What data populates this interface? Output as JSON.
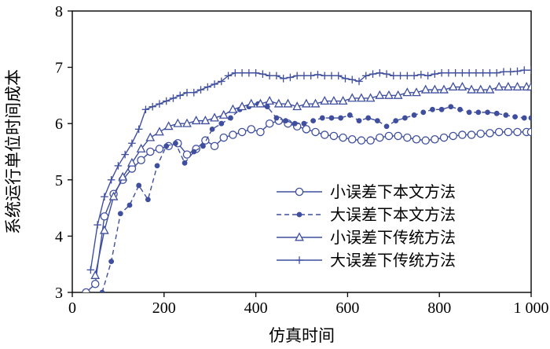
{
  "chart_data": {
    "type": "line",
    "title": "",
    "xlabel": "仿真时间",
    "ylabel": "系统运行单位时间成本",
    "xlim": [
      0,
      1000
    ],
    "ylim": [
      3,
      8
    ],
    "xticks": [
      0,
      200,
      400,
      600,
      800,
      1000
    ],
    "xtick_labels": [
      "0",
      "200",
      "400",
      "600",
      "800",
      "1 000"
    ],
    "yticks": [
      3,
      4,
      5,
      6,
      7,
      8
    ],
    "ytick_labels": [
      "3",
      "4",
      "5",
      "6",
      "7",
      "8"
    ],
    "grid": false,
    "legend_position": "inside-lower-right",
    "line_color": "#3f4f9e",
    "axis_color": "#000000",
    "series": [
      {
        "name": "小误差下本文方法",
        "marker": "circle-open",
        "line": "solid",
        "x": [
          30,
          50,
          70,
          90,
          110,
          130,
          150,
          170,
          190,
          210,
          230,
          250,
          270,
          290,
          310,
          330,
          350,
          370,
          390,
          410,
          430,
          450,
          470,
          490,
          510,
          530,
          550,
          570,
          590,
          610,
          630,
          650,
          670,
          690,
          710,
          730,
          750,
          770,
          790,
          810,
          830,
          850,
          870,
          890,
          910,
          930,
          950,
          970,
          990,
          1000
        ],
        "y": [
          3.0,
          3.15,
          4.35,
          4.75,
          5.0,
          5.2,
          5.35,
          5.5,
          5.55,
          5.6,
          5.65,
          5.45,
          5.55,
          5.7,
          5.6,
          5.75,
          5.8,
          5.85,
          5.9,
          5.85,
          6.0,
          6.05,
          6.0,
          5.95,
          5.9,
          5.85,
          5.8,
          5.78,
          5.75,
          5.72,
          5.7,
          5.7,
          5.75,
          5.78,
          5.78,
          5.75,
          5.72,
          5.7,
          5.72,
          5.75,
          5.78,
          5.8,
          5.8,
          5.82,
          5.83,
          5.85,
          5.85,
          5.85,
          5.85,
          5.85
        ]
      },
      {
        "name": "大误差下本文方法",
        "marker": "circle-filled",
        "line": "dashed",
        "x": [
          65,
          85,
          105,
          125,
          145,
          165,
          185,
          205,
          225,
          245,
          265,
          285,
          305,
          325,
          345,
          365,
          385,
          405,
          425,
          445,
          465,
          485,
          505,
          525,
          545,
          565,
          585,
          605,
          625,
          645,
          665,
          685,
          705,
          725,
          745,
          765,
          785,
          805,
          825,
          845,
          865,
          885,
          905,
          925,
          945,
          965,
          985,
          1000
        ],
        "y": [
          3.0,
          3.55,
          4.4,
          4.55,
          4.9,
          4.65,
          5.25,
          5.6,
          5.65,
          5.3,
          5.5,
          5.6,
          5.9,
          6.0,
          6.1,
          6.25,
          6.3,
          6.35,
          6.3,
          6.1,
          6.05,
          6.0,
          6.0,
          6.05,
          6.1,
          6.1,
          6.1,
          6.15,
          6.05,
          6.1,
          6.05,
          5.95,
          6.05,
          6.1,
          6.15,
          6.2,
          6.25,
          6.25,
          6.3,
          6.25,
          6.2,
          6.2,
          6.2,
          6.18,
          6.15,
          6.12,
          6.1,
          6.1
        ]
      },
      {
        "name": "小误差下传统方法",
        "marker": "triangle-open",
        "line": "solid",
        "x": [
          50,
          70,
          90,
          110,
          130,
          150,
          170,
          190,
          210,
          230,
          250,
          270,
          290,
          310,
          330,
          350,
          370,
          390,
          410,
          430,
          450,
          470,
          490,
          510,
          530,
          550,
          570,
          590,
          610,
          630,
          650,
          670,
          690,
          710,
          730,
          750,
          770,
          790,
          810,
          830,
          850,
          870,
          890,
          910,
          930,
          950,
          970,
          990,
          1000
        ],
        "y": [
          3.3,
          4.1,
          4.7,
          5.05,
          5.3,
          5.55,
          5.75,
          5.85,
          5.95,
          6.0,
          6.0,
          6.05,
          6.05,
          6.1,
          6.15,
          6.25,
          6.3,
          6.35,
          6.35,
          6.4,
          6.35,
          6.35,
          6.3,
          6.35,
          6.35,
          6.4,
          6.4,
          6.4,
          6.45,
          6.45,
          6.45,
          6.5,
          6.5,
          6.5,
          6.55,
          6.55,
          6.6,
          6.6,
          6.6,
          6.65,
          6.65,
          6.6,
          6.6,
          6.6,
          6.65,
          6.65,
          6.65,
          6.65,
          6.65
        ]
      },
      {
        "name": "大误差下传统方法",
        "marker": "plus",
        "line": "solid",
        "x": [
          40,
          55,
          70,
          85,
          100,
          115,
          130,
          145,
          160,
          175,
          190,
          205,
          220,
          235,
          250,
          265,
          280,
          295,
          310,
          325,
          340,
          355,
          370,
          385,
          400,
          415,
          430,
          445,
          460,
          475,
          490,
          505,
          520,
          535,
          550,
          565,
          580,
          595,
          610,
          625,
          640,
          655,
          670,
          685,
          700,
          715,
          730,
          745,
          760,
          775,
          790,
          805,
          820,
          835,
          850,
          865,
          880,
          895,
          910,
          925,
          940,
          955,
          970,
          985,
          1000
        ],
        "y": [
          3.4,
          4.2,
          4.7,
          5.0,
          5.25,
          5.45,
          5.65,
          5.9,
          6.25,
          6.3,
          6.35,
          6.4,
          6.45,
          6.5,
          6.55,
          6.55,
          6.6,
          6.65,
          6.7,
          6.75,
          6.85,
          6.9,
          6.9,
          6.9,
          6.9,
          6.88,
          6.85,
          6.85,
          6.8,
          6.82,
          6.85,
          6.85,
          6.85,
          6.87,
          6.85,
          6.85,
          6.85,
          6.8,
          6.78,
          6.75,
          6.85,
          6.88,
          6.9,
          6.88,
          6.85,
          6.85,
          6.85,
          6.85,
          6.87,
          6.85,
          6.88,
          6.9,
          6.9,
          6.9,
          6.9,
          6.9,
          6.9,
          6.9,
          6.9,
          6.9,
          6.92,
          6.92,
          6.93,
          6.95,
          6.95
        ]
      }
    ]
  }
}
